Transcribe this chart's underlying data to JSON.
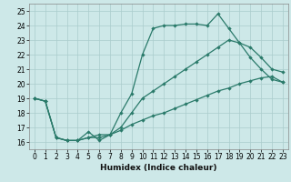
{
  "xlabel": "Humidex (Indice chaleur)",
  "bg_color": "#cde8e8",
  "grid_color": "#aacccc",
  "line_color": "#2a7a6a",
  "xlim": [
    -0.5,
    23.5
  ],
  "ylim": [
    15.5,
    25.5
  ],
  "xticks": [
    0,
    1,
    2,
    3,
    4,
    5,
    6,
    7,
    8,
    9,
    10,
    11,
    12,
    13,
    14,
    15,
    16,
    17,
    18,
    19,
    20,
    21,
    22,
    23
  ],
  "yticks": [
    16,
    17,
    18,
    19,
    20,
    21,
    22,
    23,
    24,
    25
  ],
  "line1_x": [
    0,
    1,
    2,
    3,
    4,
    5,
    6,
    7,
    8,
    9,
    10,
    11,
    12,
    13,
    14,
    15,
    16,
    17,
    18,
    19,
    20,
    21,
    22,
    23
  ],
  "line1_y": [
    19.0,
    18.8,
    16.3,
    16.1,
    16.1,
    16.7,
    16.1,
    16.5,
    18.0,
    19.3,
    22.0,
    23.8,
    24.0,
    24.0,
    24.1,
    24.1,
    24.0,
    24.8,
    23.8,
    22.8,
    21.8,
    21.0,
    20.3,
    20.1
  ],
  "line2_x": [
    0,
    1,
    2,
    3,
    4,
    5,
    6,
    7,
    8,
    9,
    10,
    11,
    12,
    13,
    14,
    15,
    16,
    17,
    18,
    19,
    20,
    21,
    22,
    23
  ],
  "line2_y": [
    19.0,
    18.8,
    16.3,
    16.1,
    16.1,
    16.3,
    16.3,
    16.5,
    17.0,
    18.0,
    19.0,
    19.5,
    20.0,
    20.5,
    21.0,
    21.5,
    22.0,
    22.5,
    23.0,
    22.8,
    22.5,
    21.8,
    21.0,
    20.8
  ],
  "line3_x": [
    0,
    1,
    2,
    3,
    4,
    5,
    6,
    7,
    8,
    9,
    10,
    11,
    12,
    13,
    14,
    15,
    16,
    17,
    18,
    19,
    20,
    21,
    22,
    23
  ],
  "line3_y": [
    19.0,
    18.8,
    16.3,
    16.1,
    16.1,
    16.3,
    16.5,
    16.5,
    16.8,
    17.2,
    17.5,
    17.8,
    18.0,
    18.3,
    18.6,
    18.9,
    19.2,
    19.5,
    19.7,
    20.0,
    20.2,
    20.4,
    20.5,
    20.1
  ]
}
